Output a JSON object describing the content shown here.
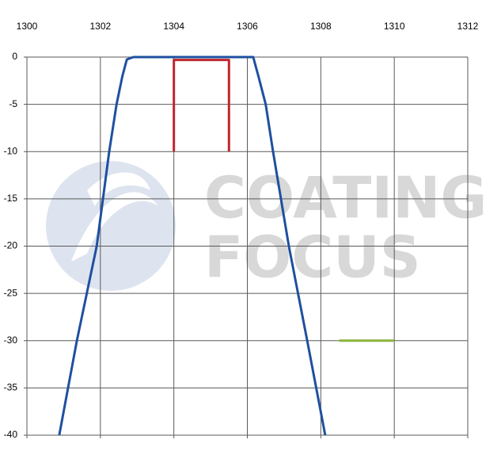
{
  "chart_data": {
    "type": "line",
    "watermark": [
      "COATING",
      "FOCUS"
    ],
    "xlim": [
      1300,
      1312
    ],
    "xticks": [
      1300,
      1302,
      1304,
      1306,
      1308,
      1310,
      1312
    ],
    "ylim": [
      -40,
      0
    ],
    "yticks": [
      0,
      -5,
      -10,
      -15,
      -20,
      -25,
      -30,
      -35,
      -40
    ],
    "grid": true,
    "series": [
      {
        "color": "#1f4fa0",
        "x": [
          1300.88,
          1301.36,
          1301.9,
          1302.24,
          1302.44,
          1302.6,
          1302.72,
          1302.9,
          1306.16,
          1306.3,
          1306.5,
          1306.7,
          1307.13,
          1307.63,
          1308.12
        ],
        "values": [
          -40,
          -30,
          -20,
          -10,
          -5,
          -2,
          -0.25,
          0,
          0,
          -2,
          -5,
          -10,
          -20,
          -30,
          -40
        ]
      },
      {
        "color": "#c0262d",
        "x": [
          1304,
          1304,
          1305.5,
          1305.5
        ],
        "values": [
          -10,
          -0.3,
          -0.3,
          -10
        ]
      },
      {
        "color": "#8cb43c",
        "x": [
          1308.5,
          1310
        ],
        "values": [
          -30,
          -30
        ]
      }
    ]
  }
}
